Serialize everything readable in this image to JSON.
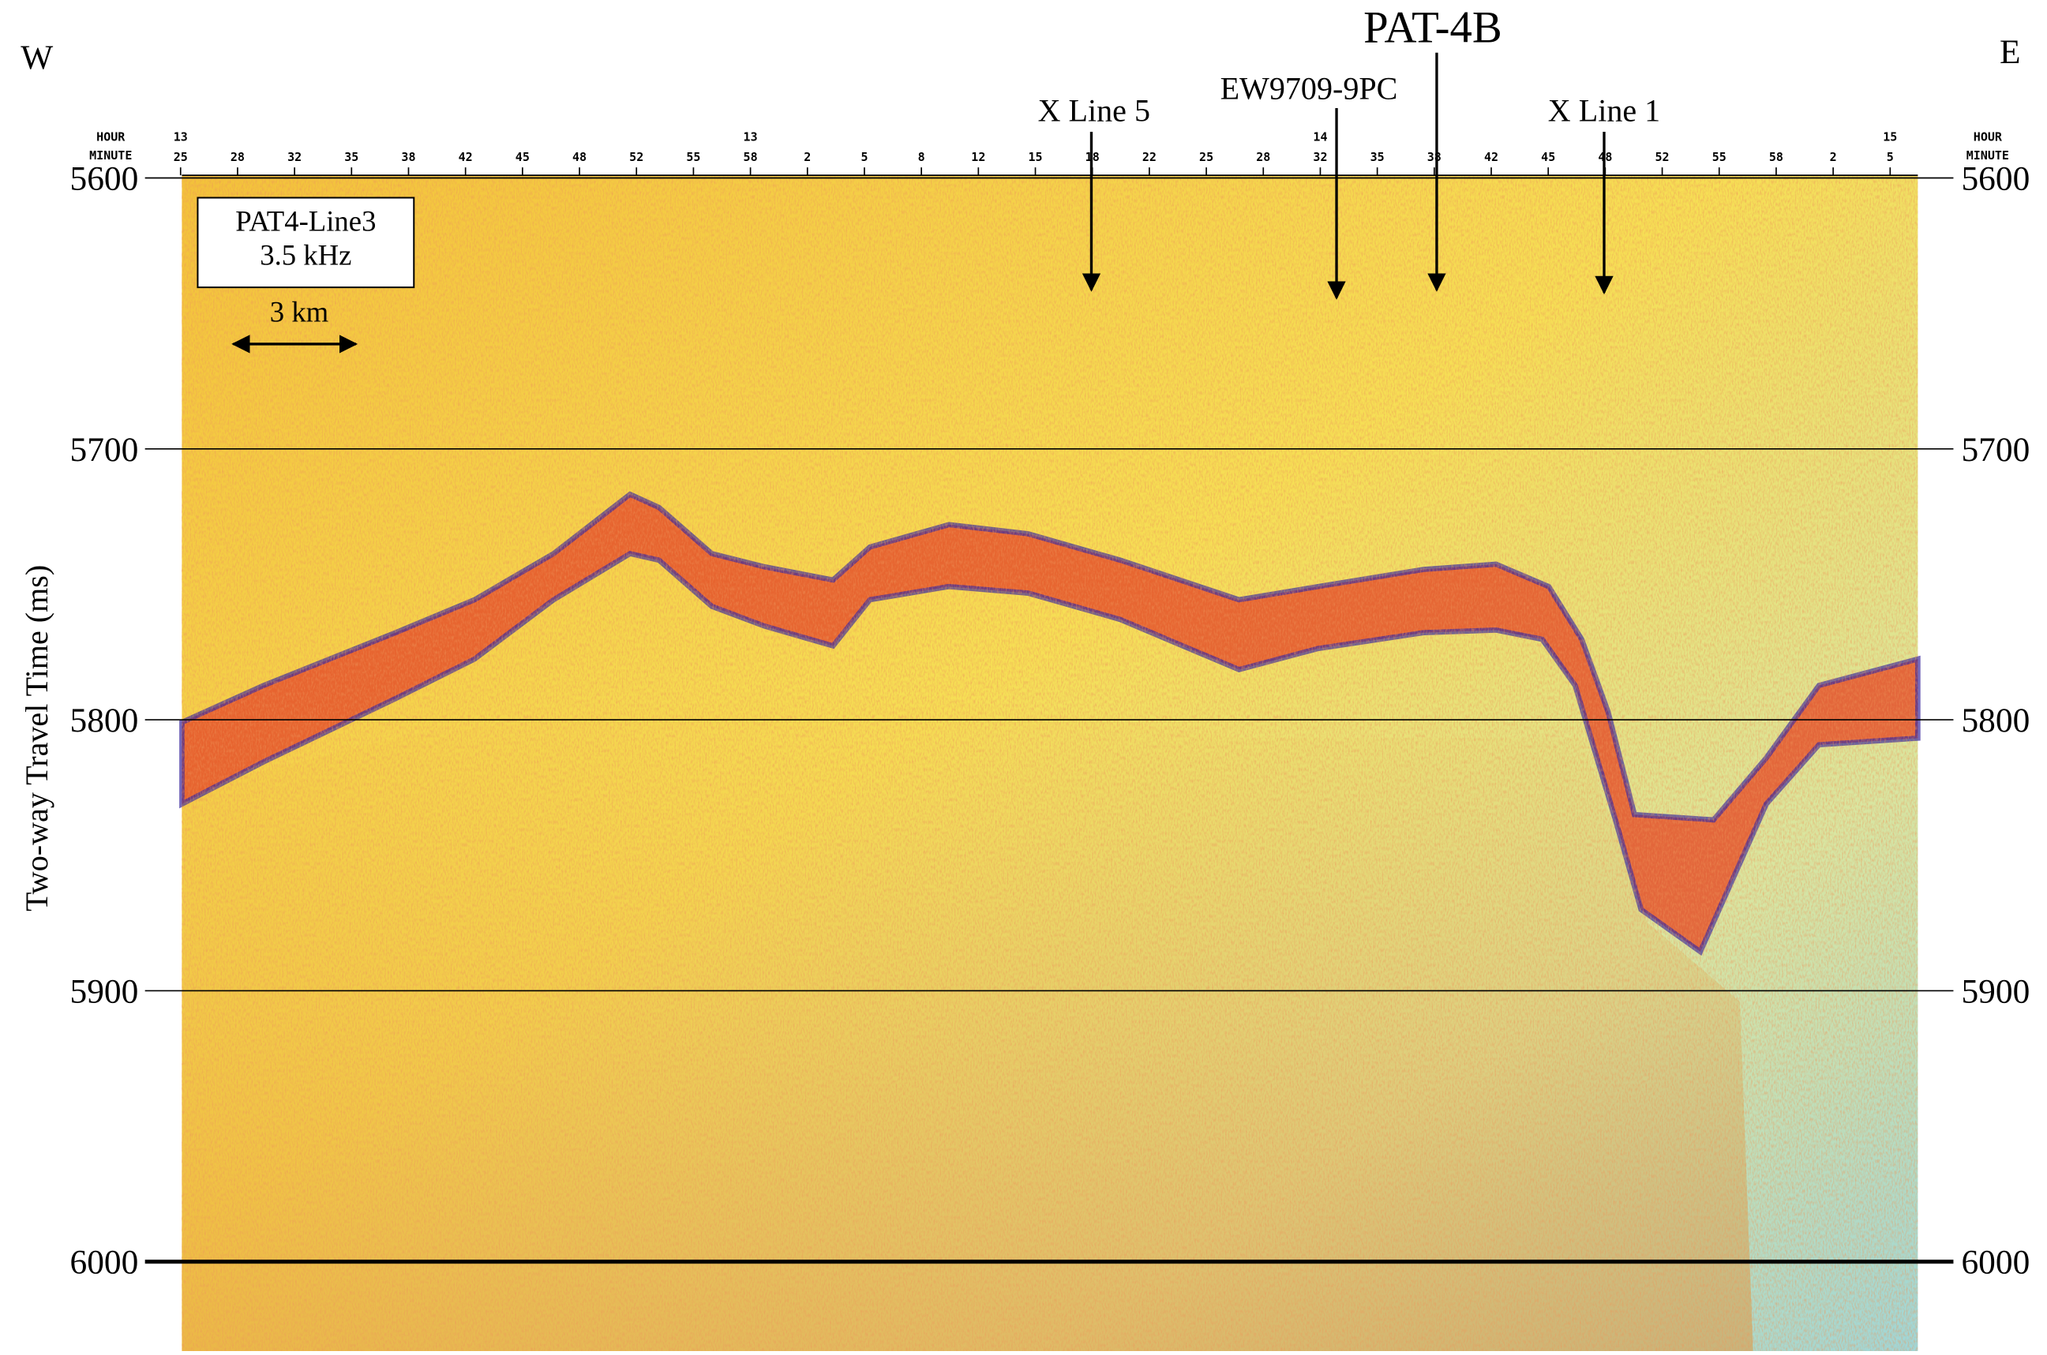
{
  "chart_data": {
    "type": "profile",
    "title": "PAT-4B",
    "west": "W",
    "east": "E",
    "core": "EW9709-9PC",
    "crossline_5": "X Line 5",
    "crossline_1": "X Line 1",
    "line_name": "PAT4-Line3",
    "frequency": "3.5 kHz",
    "scale_bar": "3 km",
    "ylabel": "Two-way Travel Time (ms)",
    "hour_label": "HOUR",
    "minute_label": "MINUTE",
    "categories": [
      "25",
      "28",
      "32",
      "35",
      "38",
      "42",
      "45",
      "48",
      "52",
      "55",
      "58",
      "2",
      "5",
      "8",
      "12",
      "15",
      "18",
      "22",
      "25",
      "28",
      "32",
      "35",
      "38",
      "42",
      "45",
      "48",
      "52",
      "55",
      "58",
      "2",
      "5"
    ],
    "hours": [
      "13",
      null,
      null,
      null,
      null,
      null,
      null,
      null,
      null,
      null,
      "13",
      null,
      null,
      null,
      null,
      null,
      null,
      null,
      null,
      null,
      "14",
      null,
      null,
      null,
      null,
      null,
      null,
      null,
      null,
      null,
      "15"
    ],
    "ylim": [
      5600,
      6033
    ],
    "yticks": [
      5600,
      5700,
      5800,
      5900,
      6000
    ],
    "grid": true
  }
}
